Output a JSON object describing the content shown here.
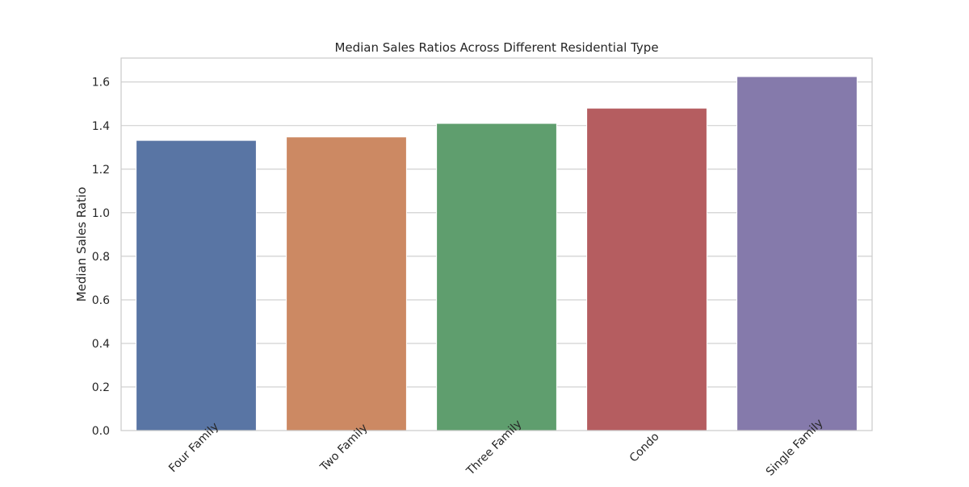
{
  "chart_data": {
    "type": "bar",
    "title": "Median Sales Ratios Across Different Residential Type",
    "xlabel": "",
    "ylabel": "Median Sales Ratio",
    "categories": [
      "Four Family",
      "Two Family",
      "Three Family",
      "Condo",
      "Single Family"
    ],
    "values": [
      1.332,
      1.348,
      1.41,
      1.48,
      1.625
    ],
    "ylim": [
      0,
      1.71
    ],
    "yticks": [
      0.0,
      0.2,
      0.4,
      0.6,
      0.8,
      1.0,
      1.2,
      1.4,
      1.6
    ],
    "ytick_labels": [
      "0.0",
      "0.2",
      "0.4",
      "0.6",
      "0.8",
      "1.0",
      "1.2",
      "1.4",
      "1.6"
    ],
    "grid": true,
    "legend": "none",
    "colors": [
      "#5975a4",
      "#cc8963",
      "#5f9e6e",
      "#b55d60",
      "#857aab"
    ],
    "gridColor": "#cccccc",
    "frameColor": "#cccccc"
  }
}
